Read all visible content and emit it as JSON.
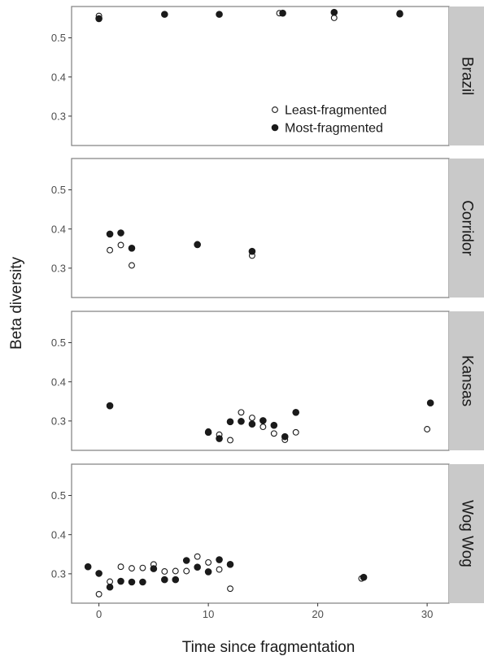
{
  "chart_data": {
    "type": "scatter",
    "xlabel": "Time since fragmentation",
    "ylabel": "Beta diversity",
    "xlim": [
      -2.5,
      32
    ],
    "ylim": [
      0.225,
      0.58
    ],
    "x_ticks": [
      "0",
      "10",
      "20",
      "30"
    ],
    "y_ticks": [
      "0.3",
      "0.4",
      "0.5"
    ],
    "legend": {
      "placement": "inside bottom-right of first panel",
      "entries": [
        {
          "label": "Least-fragmented",
          "marker": "open-circle"
        },
        {
          "label": "Most-fragmented",
          "marker": "filled-circle"
        }
      ]
    },
    "colors": {
      "point": "#1a1a1a",
      "strip": "#c9c9c9",
      "frame": "#7f7f7f"
    },
    "panels": [
      {
        "name": "Brazil",
        "series": [
          {
            "name": "Least-fragmented",
            "x": [
              0,
              6,
              11,
              16.5,
              21.5,
              27.5
            ],
            "y": [
              0.556,
              0.56,
              0.56,
              0.563,
              0.551,
              0.563
            ]
          },
          {
            "name": "Most-fragmented",
            "x": [
              0,
              6,
              11,
              16.8,
              21.5,
              27.5
            ],
            "y": [
              0.549,
              0.56,
              0.56,
              0.563,
              0.565,
              0.561
            ]
          }
        ]
      },
      {
        "name": "Corridor",
        "series": [
          {
            "name": "Least-fragmented",
            "x": [
              1,
              2,
              3,
              9,
              14
            ],
            "y": [
              0.346,
              0.359,
              0.307,
              0.361,
              0.332
            ]
          },
          {
            "name": "Most-fragmented",
            "x": [
              1,
              2,
              3,
              9,
              14
            ],
            "y": [
              0.387,
              0.39,
              0.351,
              0.36,
              0.343
            ]
          }
        ]
      },
      {
        "name": "Kansas",
        "series": [
          {
            "name": "Least-fragmented",
            "x": [
              1,
              10,
              11,
              12,
              13,
              14,
              15,
              16,
              17,
              18,
              30
            ],
            "y": [
              0.338,
              0.273,
              0.265,
              0.251,
              0.322,
              0.308,
              0.285,
              0.268,
              0.252,
              0.271,
              0.279
            ]
          },
          {
            "name": "Most-fragmented",
            "x": [
              1,
              10,
              11,
              12,
              13,
              14,
              15,
              16,
              17,
              18,
              30.3
            ],
            "y": [
              0.339,
              0.271,
              0.255,
              0.298,
              0.299,
              0.292,
              0.301,
              0.289,
              0.26,
              0.322,
              0.346
            ]
          }
        ]
      },
      {
        "name": "Wog Wog",
        "series": [
          {
            "name": "Least-fragmented",
            "x": [
              0,
              1,
              2,
              3,
              4,
              5,
              6,
              7,
              8,
              9,
              10,
              11,
              12,
              24
            ],
            "y": [
              0.248,
              0.28,
              0.318,
              0.314,
              0.315,
              0.324,
              0.306,
              0.307,
              0.307,
              0.344,
              0.329,
              0.311,
              0.262,
              0.288
            ]
          },
          {
            "name": "Most-fragmented",
            "x": [
              -1,
              0,
              1,
              2,
              3,
              4,
              5,
              6,
              7,
              8,
              9,
              10,
              11,
              12,
              24.2
            ],
            "y": [
              0.318,
              0.301,
              0.266,
              0.281,
              0.279,
              0.279,
              0.313,
              0.285,
              0.285,
              0.334,
              0.317,
              0.305,
              0.336,
              0.324,
              0.291
            ]
          }
        ]
      }
    ]
  }
}
